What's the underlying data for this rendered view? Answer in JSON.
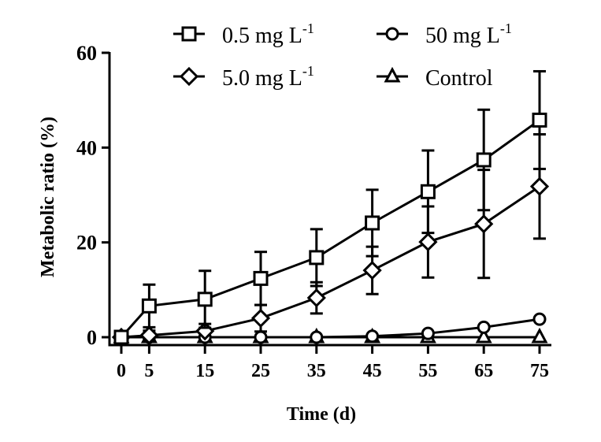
{
  "chart_data": {
    "type": "line",
    "title": "",
    "xlabel": "Time (d)",
    "ylabel": "Metabolic ratio (%)",
    "x": [
      0,
      5,
      15,
      25,
      35,
      45,
      55,
      65,
      75
    ],
    "x_tick_labels": [
      "0",
      "5",
      "15",
      "25",
      "35",
      "45",
      "55",
      "65",
      "75"
    ],
    "y_ticks": [
      0,
      20,
      40,
      60
    ],
    "y_tick_labels": [
      "0",
      "20",
      "40",
      "60"
    ],
    "xlim": [
      0,
      75
    ],
    "ylim": [
      0,
      60
    ],
    "grid": false,
    "legend_position": "top",
    "series": [
      {
        "name": "0.5 mg L-1",
        "label_main": "0.5 mg L",
        "label_sup": "-1",
        "marker": "square",
        "values": [
          0,
          6.6,
          8.0,
          12.4,
          16.8,
          24.1,
          30.7,
          37.4,
          45.8
        ],
        "error": [
          0.5,
          4.5,
          6.0,
          5.6,
          6.0,
          7.0,
          8.7,
          10.6,
          10.3
        ]
      },
      {
        "name": "5.0 mg L-1",
        "label_main": "5.0 mg L",
        "label_sup": "-1",
        "marker": "diamond",
        "values": [
          0,
          0.4,
          1.3,
          4.0,
          8.3,
          14.1,
          20.1,
          23.9,
          31.8
        ],
        "error": [
          0.3,
          1.0,
          1.5,
          2.8,
          3.3,
          5.0,
          7.5,
          11.4,
          11.0
        ]
      },
      {
        "name": "50 mg L-1",
        "label_main": "50 mg L",
        "label_sup": "-1",
        "marker": "circle",
        "values": [
          0,
          0,
          0,
          0,
          0,
          0.2,
          0.8,
          2.1,
          3.8
        ],
        "error": [
          0,
          0,
          0,
          0,
          0,
          0,
          0,
          0,
          0
        ]
      },
      {
        "name": "Control",
        "label_main": "Control",
        "label_sup": "",
        "marker": "triangle",
        "values": [
          0,
          0,
          0,
          0,
          0,
          0,
          0,
          0,
          0
        ],
        "error": [
          0,
          0,
          0,
          0,
          0,
          0,
          0,
          0,
          0
        ]
      }
    ]
  }
}
